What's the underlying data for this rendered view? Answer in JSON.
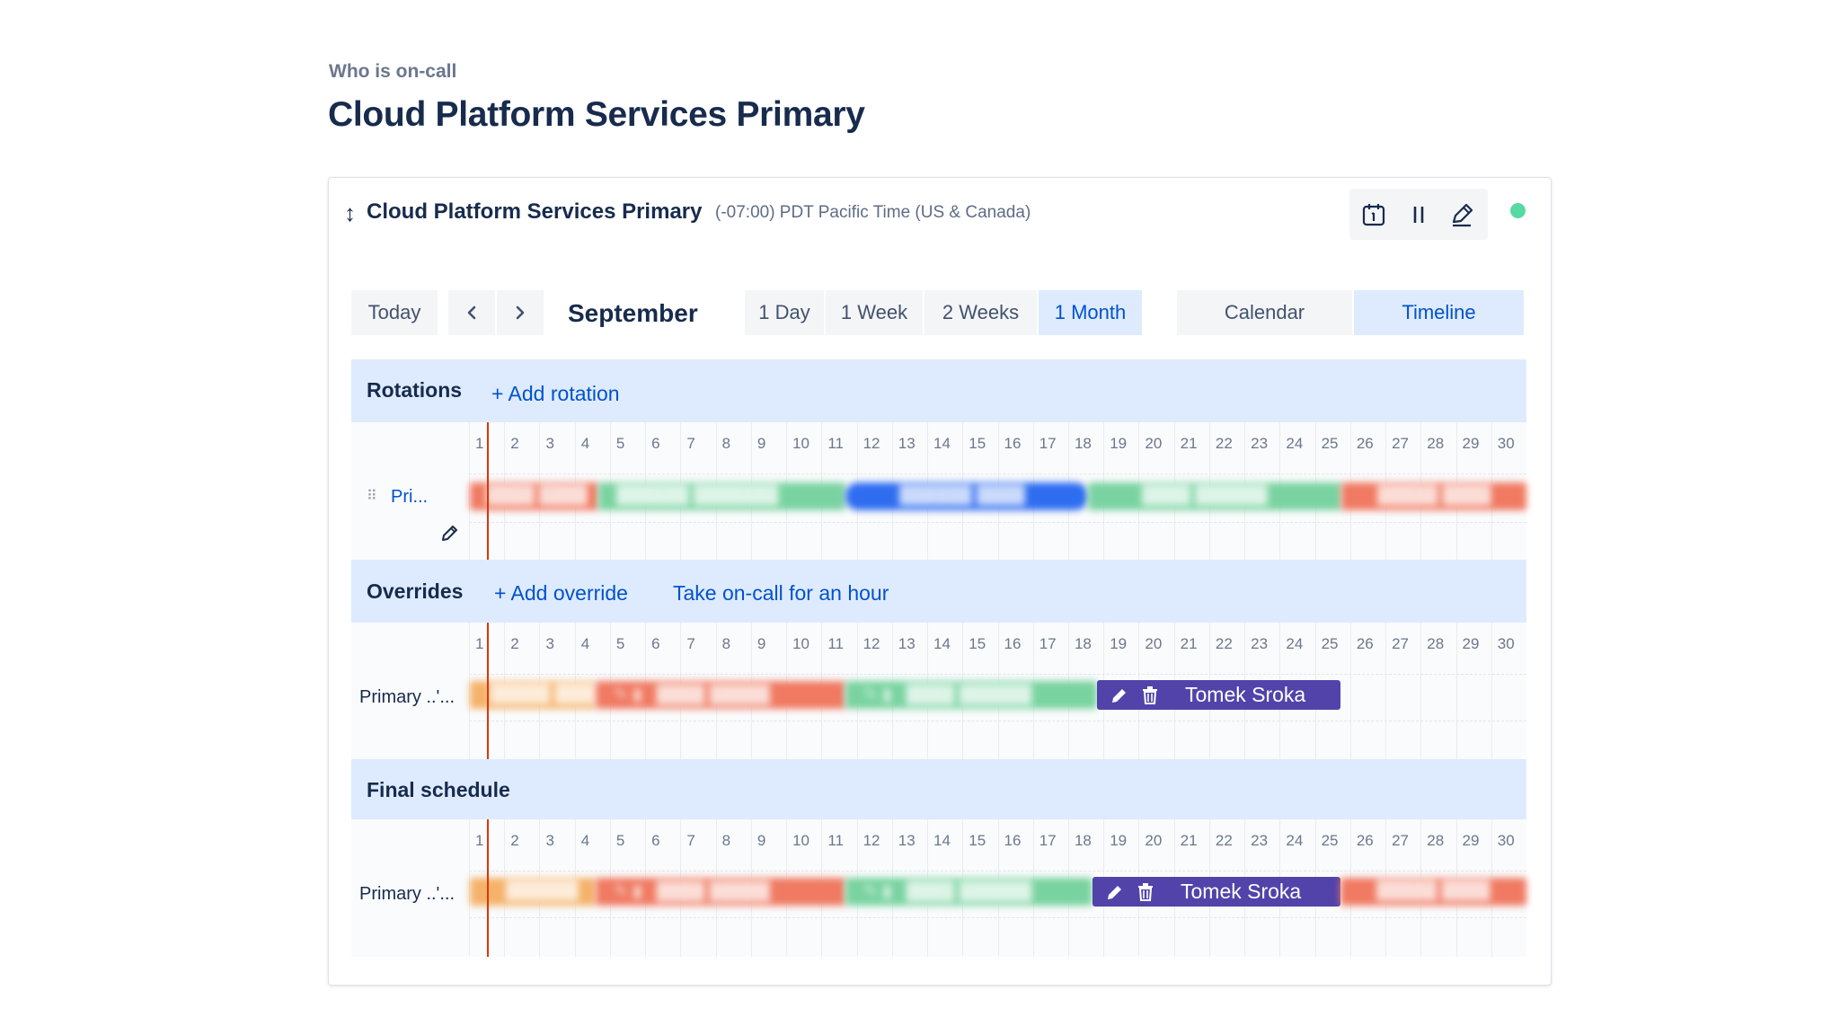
{
  "breadcrumb": "Who is on-call",
  "page_title": "Cloud Platform Services Primary",
  "schedule": {
    "name": "Cloud Platform Services Primary",
    "timezone": "(-07:00) PDT Pacific Time (US & Canada)",
    "status_color": "#57d9a3"
  },
  "toolbar": {
    "today": "Today",
    "prev_icon": "chevron-left-icon",
    "next_icon": "chevron-right-icon",
    "month": "September",
    "ranges": [
      "1 Day",
      "1 Week",
      "2 Weeks",
      "1 Month"
    ],
    "selected_range": "1 Month",
    "views": [
      "Calendar",
      "Timeline"
    ],
    "selected_view": "Timeline"
  },
  "actions": [
    "calendar-icon",
    "pause-icon",
    "edit-icon"
  ],
  "days": [
    "1",
    "2",
    "3",
    "4",
    "5",
    "6",
    "7",
    "8",
    "9",
    "10",
    "11",
    "12",
    "13",
    "14",
    "15",
    "16",
    "17",
    "18",
    "19",
    "20",
    "21",
    "22",
    "23",
    "24",
    "25",
    "26",
    "27",
    "28",
    "29",
    "30"
  ],
  "sections": {
    "rotations": {
      "title": "Rotations",
      "add_link": "+ Add rotation",
      "row_label": "Pri..."
    },
    "overrides": {
      "title": "Overrides",
      "add_link": "+ Add override",
      "take_link": "Take on-call for an hour",
      "row_label": "Primary ..'..."
    },
    "final": {
      "title": "Final schedule",
      "row_label": "Primary ..'..."
    }
  },
  "override_user": "Tomek Sroka",
  "final_user": "Tomek Sroka",
  "colors": {
    "accent": "#0052cc",
    "header_bg": "#deebff",
    "override_pill": "#5243aa",
    "today_line": "#de350b",
    "red": "#f07a62",
    "green": "#79d3a0",
    "blue": "#2f6df0",
    "orange": "#f5b26a"
  }
}
